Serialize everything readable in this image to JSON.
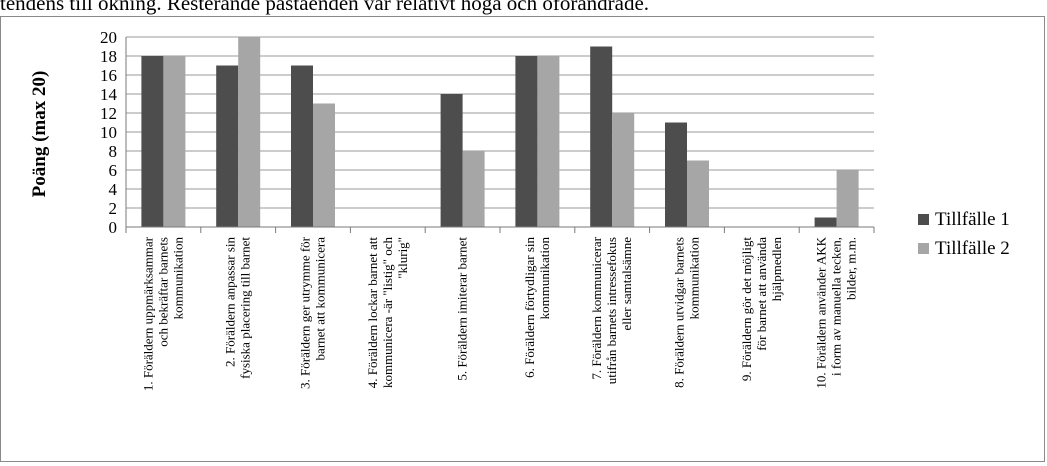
{
  "page": {
    "top_text": "tendens till ökning. Resterande påståenden var relativt höga och oförändrade."
  },
  "chart_data": {
    "type": "bar",
    "ylabel": "Poäng (max 20)",
    "ylim": [
      0,
      20
    ],
    "yticks": [
      0,
      2,
      4,
      6,
      8,
      10,
      12,
      14,
      16,
      18,
      20
    ],
    "grid": true,
    "legend_position": "right",
    "colors": {
      "Tillfälle 1": "#4d4d4d",
      "Tillfälle 2": "#a6a6a6"
    },
    "categories": [
      [
        "1. Föräldern uppmärksammar",
        "och bekräftar barnets",
        "kommunikation"
      ],
      [
        "2. Föräldern anpassar sin",
        "fysiska placering till barnet"
      ],
      [
        "3. Föräldern ger utrymme för",
        "barnet att kommunicera"
      ],
      [
        "4. Föräldern lockar barnet att",
        "kommunicera -är \"listig\" och",
        "\"klurig\""
      ],
      [
        "5. Föräldern imiterar barnet"
      ],
      [
        "6. Föräldern förtydligar sin",
        "kommunikation"
      ],
      [
        "7. Föräldern kommunicerar",
        "utifrån barnets intressefokus",
        "eller samtalsämne"
      ],
      [
        "8. Föräldern utvidgar barnets",
        "kommunikation"
      ],
      [
        "9. Föräldern gör det möjligt",
        "för barnet att använda",
        "hjälpmedlen"
      ],
      [
        "10. Föräldern använder AKK",
        "i form av manuella tecken,",
        "bilder, m.m."
      ]
    ],
    "series": [
      {
        "name": "Tillfälle 1",
        "values": [
          18,
          17,
          17,
          0,
          14,
          18,
          19,
          11,
          0,
          1
        ]
      },
      {
        "name": "Tillfälle 2",
        "values": [
          18,
          20,
          13,
          0,
          8,
          18,
          12,
          7,
          0,
          6
        ]
      }
    ]
  }
}
